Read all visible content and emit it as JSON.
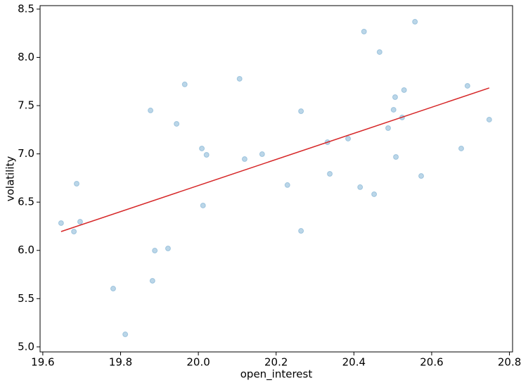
{
  "chart_data": {
    "type": "scatter",
    "x_label": "open_interest",
    "y_label": "volatility",
    "xlim": [
      19.593,
      20.808
    ],
    "ylim": [
      4.948,
      8.536
    ],
    "xticks": [
      19.6,
      19.8,
      {
        "value": 20,
        "label": "20.0"
      },
      20.2,
      20.4,
      20.6,
      20.8
    ],
    "yticks": [
      {
        "value": 5,
        "label": "5.0"
      },
      5.5,
      {
        "value": 6,
        "label": "6.0"
      },
      6.5,
      {
        "value": 7,
        "label": "7.0"
      },
      7.5,
      {
        "value": 8,
        "label": "8.0"
      },
      8.5
    ],
    "series": [
      {
        "type": "scatter",
        "color": "#1f77b4",
        "x": [
          19.647,
          19.68,
          19.687,
          19.696,
          19.781,
          19.812,
          19.877,
          19.882,
          19.888,
          19.922,
          19.944,
          19.965,
          20.009,
          20.012,
          20.021,
          20.106,
          20.119,
          20.164,
          20.229,
          20.264,
          20.264,
          20.332,
          20.338,
          20.385,
          20.416,
          20.426,
          20.452,
          20.466,
          20.488,
          20.502,
          20.506,
          20.508,
          20.524,
          20.529,
          20.557,
          20.573,
          20.676,
          20.692,
          20.748
        ],
        "values": [
          6.283,
          6.195,
          6.691,
          6.297,
          5.604,
          5.13,
          7.45,
          5.685,
          5.998,
          6.02,
          7.311,
          7.72,
          7.056,
          6.465,
          6.99,
          7.778,
          6.946,
          6.997,
          6.677,
          7.442,
          6.202,
          7.121,
          6.793,
          7.158,
          6.655,
          8.267,
          6.582,
          8.055,
          7.267,
          7.457,
          7.588,
          6.968,
          7.377,
          7.661,
          8.369,
          6.771,
          7.056,
          7.705,
          7.355
        ]
      },
      {
        "type": "line",
        "color": "#d62728",
        "x": [
          19.647,
          20.748
        ],
        "values": [
          6.195,
          7.683
        ]
      }
    ]
  }
}
